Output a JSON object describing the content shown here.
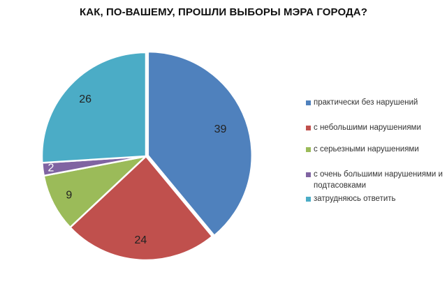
{
  "chart_data": {
    "type": "pie",
    "title": "КАК, ПО-ВАШЕМУ, ПРОШЛИ ВЫБОРЫ МЭРА ГОРОДА?",
    "categories": [
      "практически без нарушений",
      "с небольшими нарушениями",
      "с серьезными нарушениями",
      "с очень большими нарушениями и подтасовками",
      "затрудняюсь ответить"
    ],
    "values": [
      39,
      24,
      9,
      2,
      26
    ],
    "data_labels": [
      "39",
      "24",
      "9",
      "2",
      "26"
    ],
    "colors": [
      "#4F81BD",
      "#C0504D",
      "#9BBB59",
      "#8064A2",
      "#4BACC6"
    ],
    "legend_placement": "right",
    "exploded_slice": "практически без нарушений"
  }
}
